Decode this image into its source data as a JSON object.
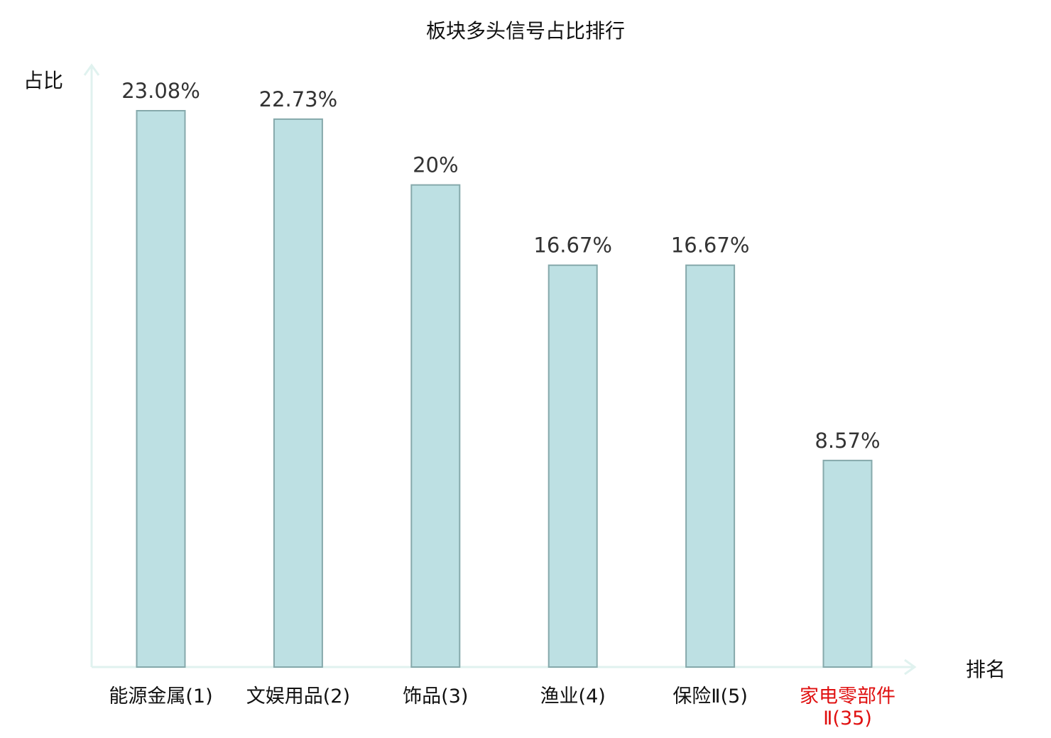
{
  "chart_data": {
    "type": "bar",
    "title": "板块多头信号占比排行",
    "ylabel": "占比",
    "xlabel": "排名",
    "categories": [
      "能源金属(1)",
      "文娱用品(2)",
      "饰品(3)",
      "渔业(4)",
      "保险Ⅱ(5)",
      "家电零部件Ⅱ(35)"
    ],
    "values": [
      23.08,
      22.73,
      20,
      16.67,
      16.67,
      8.57
    ],
    "value_labels": [
      "23.08%",
      "22.73%",
      "20%",
      "16.67%",
      "16.67%",
      "8.57%"
    ],
    "highlight_index": 5,
    "ylim": [
      0,
      23.08
    ],
    "grid": false,
    "colors": {
      "bar_fill": "#bde0e3",
      "bar_stroke": "#86a9ab",
      "axis": "#e0f2ef",
      "highlight_text": "#e01010"
    }
  }
}
